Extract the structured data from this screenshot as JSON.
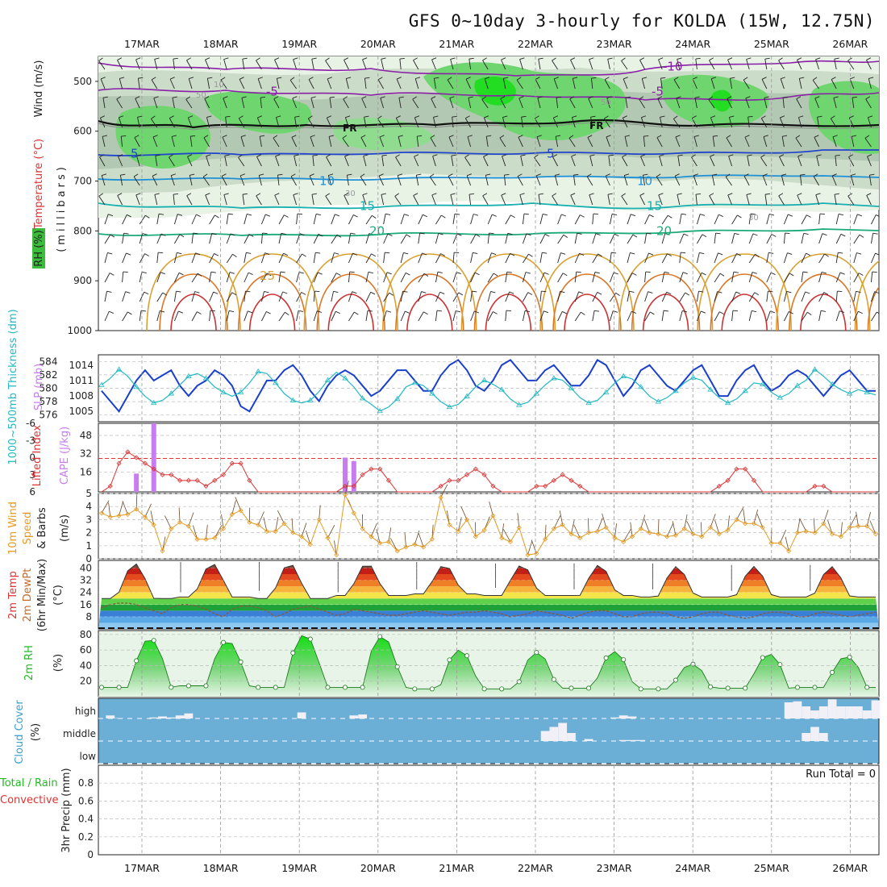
{
  "title": "GFS 0~10day 3-hourly for KOLDA (15W, 12.75N)",
  "dates": [
    "17MAR",
    "18MAR",
    "19MAR",
    "20MAR",
    "21MAR",
    "22MAR",
    "23MAR",
    "24MAR",
    "25MAR",
    "26MAR"
  ],
  "colors": {
    "rh_green": "#33cc33",
    "slp_line": "#1a3fcc",
    "thickness_line": "#22b8c4",
    "lifted_index": "#dd3333",
    "cape_bar": "#c77cf0",
    "wind_speed": "#e69a22",
    "rh2m": "#22bb22",
    "cloud_bg": "#6baed6",
    "cloud_bar": "#f2f0f7"
  },
  "chart_data": [
    {
      "type": "contour",
      "panel": "upper-air cross section",
      "ylabel": "(millibars)",
      "ylabel_parts": [
        "RH (%)",
        "Temperature (°C)",
        "Wind (m/s)"
      ],
      "ylim": [
        1000,
        450
      ],
      "yticks": [
        "500",
        "600",
        "700",
        "800",
        "900",
        "1000"
      ],
      "freezing_label": "FR",
      "temperature_isotherms": [
        {
          "label": "-10",
          "pressure": 470,
          "color": "#8a1fa8"
        },
        {
          "label": "-5",
          "pressure": 520,
          "color": "#8a1fa8"
        },
        {
          "label": "5",
          "pressure": 645,
          "color": "#2244cc"
        },
        {
          "label": "10",
          "pressure": 700,
          "color": "#1e90d8"
        },
        {
          "label": "15",
          "pressure": 750,
          "color": "#1ab0b0"
        },
        {
          "label": "20",
          "pressure": 800,
          "color": "#1aaa77"
        },
        {
          "label": "25",
          "pressure": 890,
          "color": "#d9a030"
        }
      ],
      "rh_labels": [
        "10",
        "50",
        "30",
        "70"
      ]
    },
    {
      "type": "line",
      "panel": "slp-thickness",
      "ylabel_left": "1000~500mb Thickness (dm)",
      "ylabel_right": "SLP (mb)",
      "yticks_thickness": [
        "584",
        "582",
        "580",
        "578",
        "576"
      ],
      "yticks_slp": [
        "1014",
        "1011",
        "1008",
        "1005"
      ],
      "series": [
        {
          "name": "SLP (mb)",
          "ylim": [
            1003,
            1016
          ],
          "values": [
            1009,
            1007,
            1005,
            1008,
            1011,
            1013,
            1011,
            1012,
            1013,
            1010,
            1008,
            1010,
            1011,
            1013,
            1012,
            1010,
            1006,
            1005,
            1008,
            1011,
            1011,
            1013,
            1014,
            1012,
            1009,
            1007,
            1010,
            1012,
            1013,
            1012,
            1010,
            1008,
            1009,
            1011,
            1013,
            1013,
            1011,
            1009,
            1009,
            1012,
            1014,
            1015,
            1013,
            1010,
            1009,
            1011,
            1014,
            1015,
            1013,
            1011,
            1011,
            1013,
            1014,
            1012,
            1010,
            1010,
            1012,
            1015,
            1014,
            1011,
            1008,
            1010,
            1013,
            1014,
            1012,
            1010,
            1009,
            1011,
            1013,
            1014,
            1011,
            1008,
            1008,
            1011,
            1013,
            1014,
            1011,
            1009,
            1010,
            1012,
            1013,
            1012,
            1010,
            1008,
            1010,
            1012,
            1013,
            1011,
            1009,
            1009
          ]
        },
        {
          "name": "1000~500mb Thickness (dm)",
          "ylim": [
            575,
            585
          ],
          "values": [
            580.5,
            581.5,
            582.8,
            581.8,
            580.2,
            578.8,
            577.8,
            578.2,
            579.2,
            580.5,
            581.8,
            582.2,
            581.5,
            580.2,
            579.4,
            578.8,
            579.4,
            580.8,
            582.5,
            582.2,
            580.8,
            579.2,
            578.2,
            577.8,
            578.2,
            579.5,
            581.2,
            582.4,
            581.5,
            580.2,
            578.5,
            577.6,
            576.6,
            577.2,
            578.4,
            580.2,
            580.8,
            580.4,
            579.2,
            578.0,
            577.2,
            577.6,
            578.8,
            580.2,
            581.2,
            580.6,
            579.8,
            578.4,
            577.5,
            577.9,
            579.2,
            580.5,
            581.5,
            581.2,
            580.0,
            578.6,
            577.8,
            578.2,
            579.4,
            580.8,
            581.8,
            581.4,
            580.2,
            578.8,
            578.0,
            578.6,
            579.6,
            580.8,
            581.6,
            581.2,
            579.8,
            578.6,
            577.8,
            578.4,
            579.6,
            580.8,
            580.6,
            579.4,
            578.6,
            579.2,
            580.4,
            581.2,
            582.8,
            581.8,
            580.6,
            579.8,
            579.2,
            579.8,
            579.4,
            579.0
          ]
        }
      ]
    },
    {
      "type": "bar+line",
      "panel": "lifted-index-cape",
      "ylabel_left": "Lifted Index",
      "ylabel_right": "CAPE (J/kg)",
      "yticks_li": [
        "-6",
        "-3",
        "0",
        "3",
        "6"
      ],
      "yticks_cape": [
        "48",
        "32",
        "16"
      ],
      "li_values": [
        6,
        5,
        1,
        -1,
        0,
        1,
        2,
        3,
        3,
        4,
        4,
        4,
        5,
        4,
        3,
        1,
        1,
        4,
        6,
        7,
        7,
        7,
        7,
        8,
        9,
        8,
        7,
        6,
        5,
        5,
        3,
        2,
        2,
        4,
        6,
        7,
        7,
        7,
        6,
        5,
        4,
        4,
        3,
        2,
        3,
        5,
        7,
        8,
        7,
        6,
        5,
        5,
        4,
        3,
        4,
        5,
        6,
        7,
        8,
        8,
        7,
        7,
        6,
        6,
        6,
        7,
        8,
        8,
        8,
        7,
        6,
        5,
        4,
        2,
        2,
        4,
        7,
        8,
        8,
        7,
        6,
        6,
        5,
        5,
        6,
        6,
        7,
        7,
        8,
        8
      ],
      "cape_bars": [
        {
          "i": 4,
          "value": 16
        },
        {
          "i": 6,
          "value": 60
        },
        {
          "i": 28,
          "value": 30
        },
        {
          "i": 29,
          "value": 27
        }
      ]
    },
    {
      "type": "line",
      "panel": "10m-wind",
      "ylabel_left": "10m Wind",
      "ylabel_mid": "Speed",
      "ylabel_right": "& Barbs",
      "yunit": "(m/s)",
      "ylim": [
        0,
        5
      ],
      "yticks": [
        "0",
        "1",
        "2",
        "3",
        "4",
        "5"
      ],
      "values": [
        3.5,
        3.2,
        3.3,
        3.4,
        3.8,
        3.2,
        2.6,
        0.6,
        2.3,
        2.8,
        2.5,
        1.5,
        1.5,
        1.6,
        2.3,
        3.4,
        3.7,
        2.8,
        2.6,
        2.1,
        2.1,
        2.7,
        2.0,
        1.7,
        1.1,
        3.0,
        1.6,
        0.3,
        4.9,
        3.5,
        2.3,
        1.7,
        1.2,
        1.3,
        0.6,
        0.9,
        1.1,
        0.9,
        1.5,
        4.7,
        2.6,
        2.1,
        3.0,
        1.7,
        2.2,
        3.3,
        1.6,
        1.3,
        2.4,
        0.3,
        0.4,
        1.5,
        2.3,
        2.6,
        1.9,
        1.6,
        2.0,
        2.1,
        2.4,
        1.6,
        1.3,
        1.7,
        2.3,
        2.0,
        1.9,
        1.7,
        1.8,
        2.3,
        1.9,
        1.7,
        2.4,
        1.9,
        2.2,
        3.0,
        2.7,
        2.7,
        2.4,
        1.2,
        1.2,
        0.6,
        2.0,
        2.1,
        2.0,
        2.7,
        1.9,
        1.7,
        2.4,
        2.5,
        2.5,
        1.9
      ]
    },
    {
      "type": "area",
      "panel": "2m-temperature",
      "ylabel_parts": [
        "2m Temp",
        "2m DewPt",
        "(6hr Min/Max)",
        "(°C)"
      ],
      "ylim": [
        0,
        45
      ],
      "yticks": [
        "8",
        "16",
        "24",
        "32",
        "40"
      ],
      "days": [
        {
          "min": 20,
          "max": 43
        },
        {
          "min": 21,
          "max": 43
        },
        {
          "min": 20,
          "max": 43
        },
        {
          "min": 22,
          "max": 43
        },
        {
          "min": 23,
          "max": 42
        },
        {
          "min": 22,
          "max": 42
        },
        {
          "min": 22,
          "max": 42
        },
        {
          "min": 21,
          "max": 41
        },
        {
          "min": 21,
          "max": 41
        },
        {
          "min": 21,
          "max": 41
        }
      ],
      "dewpoint": [
        14,
        16,
        17,
        17,
        16,
        14,
        12,
        10,
        14,
        16,
        16,
        15,
        13,
        10,
        8,
        13,
        15,
        15,
        14,
        12,
        8,
        10,
        13,
        14,
        15,
        13,
        11,
        9,
        10,
        13,
        12,
        11,
        10,
        9,
        9,
        10,
        11,
        12,
        11,
        10,
        9,
        10,
        11,
        11,
        12,
        11,
        10,
        8,
        9,
        10,
        12,
        11,
        10,
        9,
        7,
        9,
        11,
        12,
        12,
        10,
        8,
        8,
        10,
        11,
        11,
        10,
        8,
        7,
        8,
        10,
        11,
        11,
        9,
        8,
        7,
        8,
        10,
        11,
        11,
        10,
        8,
        8,
        10,
        11,
        10,
        9,
        8,
        9,
        10,
        11
      ]
    },
    {
      "type": "area",
      "panel": "2m-rh",
      "ylabel": "2m RH",
      "yunit": "(%)",
      "ylim": [
        0,
        85
      ],
      "yticks": [
        "20",
        "40",
        "60",
        "80"
      ],
      "days": [
        {
          "max": 75,
          "min": 12
        },
        {
          "max": 72,
          "min": 14
        },
        {
          "max": 80,
          "min": 12
        },
        {
          "max": 78,
          "min": 12
        },
        {
          "max": 60,
          "min": 10
        },
        {
          "max": 57,
          "min": 10
        },
        {
          "max": 58,
          "min": 11
        },
        {
          "max": 42,
          "min": 10
        },
        {
          "max": 55,
          "min": 11
        },
        {
          "max": 52,
          "min": 12
        }
      ]
    },
    {
      "type": "bar",
      "panel": "cloud-cover",
      "ylabel": "Cloud Cover",
      "yunit": "(%)",
      "levels": [
        "high",
        "middle",
        "low"
      ],
      "high": [
        0,
        15,
        2,
        0,
        0,
        0,
        5,
        10,
        5,
        15,
        25,
        0,
        0,
        0,
        0,
        0,
        0,
        0,
        0,
        0,
        0,
        0,
        0,
        30,
        0,
        0,
        0,
        0,
        0,
        15,
        20,
        0,
        0,
        0,
        0,
        0,
        0,
        0,
        0,
        0,
        0,
        0,
        0,
        0,
        0,
        0,
        0,
        0,
        0,
        0,
        0,
        0,
        0,
        0,
        0,
        0,
        0,
        0,
        0,
        5,
        15,
        10,
        0,
        0,
        0,
        0,
        0,
        0,
        0,
        0,
        0,
        0,
        0,
        0,
        0,
        0,
        0,
        0,
        0,
        80,
        85,
        60,
        40,
        60,
        95,
        60,
        60,
        60,
        40,
        90
      ],
      "middle": [
        0,
        0,
        0,
        0,
        0,
        0,
        0,
        0,
        0,
        0,
        0,
        0,
        0,
        0,
        0,
        0,
        0,
        0,
        0,
        0,
        0,
        0,
        0,
        0,
        0,
        0,
        0,
        0,
        0,
        0,
        0,
        0,
        0,
        0,
        0,
        0,
        0,
        0,
        0,
        0,
        0,
        0,
        0,
        0,
        0,
        0,
        0,
        0,
        0,
        0,
        0,
        50,
        70,
        90,
        40,
        0,
        10,
        0,
        0,
        0,
        5,
        5,
        5,
        0,
        0,
        0,
        0,
        0,
        0,
        0,
        0,
        0,
        0,
        0,
        0,
        0,
        0,
        0,
        0,
        0,
        0,
        40,
        70,
        40,
        0,
        0,
        0,
        0,
        0,
        0
      ],
      "low": []
    },
    {
      "type": "bar",
      "panel": "precipitation",
      "ylabel_parts": [
        "3hr Precip (mm)",
        "Total / Rain",
        "Convective"
      ],
      "ylim": [
        0,
        1
      ],
      "yticks": [
        "0",
        "0.2",
        "0.4",
        "0.6",
        "0.8"
      ],
      "run_total_label": "Run Total = 0",
      "values": []
    }
  ]
}
